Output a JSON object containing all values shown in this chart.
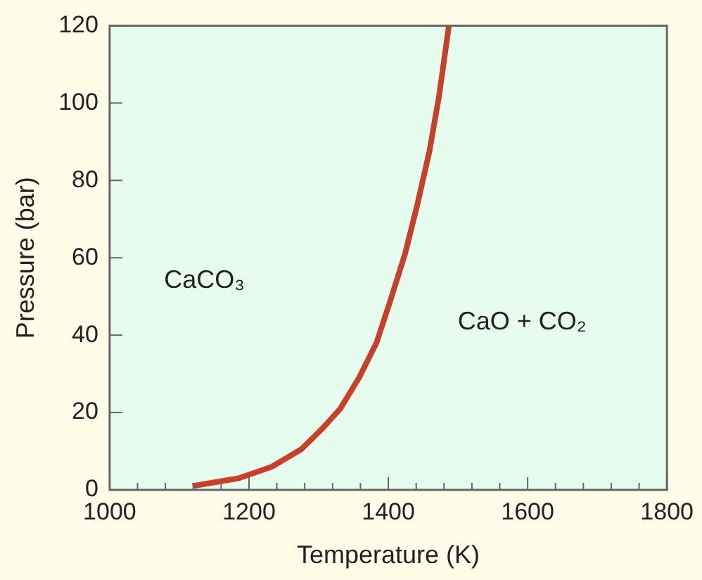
{
  "chart_data": {
    "type": "line",
    "xlabel": "Temperature (K)",
    "ylabel": "Pressure (bar)",
    "x": [
      1119,
      1185,
      1233,
      1275,
      1306,
      1331,
      1358,
      1383,
      1403,
      1424,
      1442,
      1459,
      1473,
      1487
    ],
    "series": [
      {
        "color": "#c8402a",
        "values": [
          1,
          3,
          6,
          10.5,
          16,
          21,
          29,
          38,
          49,
          61,
          74,
          87.5,
          102,
          120
        ]
      }
    ],
    "xlim": [
      1000,
      1800
    ],
    "ylim": [
      0,
      120
    ],
    "xticks": [
      1000,
      {
        "value": 1040,
        "label": null
      },
      {
        "value": 1080,
        "label": null
      },
      {
        "value": 1120,
        "label": null
      },
      {
        "value": 1160,
        "label": null
      },
      1200,
      {
        "value": 1240,
        "label": null
      },
      {
        "value": 1280,
        "label": null
      },
      {
        "value": 1320,
        "label": null
      },
      {
        "value": 1360,
        "label": null
      },
      1400,
      {
        "value": 1440,
        "label": null
      },
      {
        "value": 1480,
        "label": null
      },
      {
        "value": 1520,
        "label": null
      },
      {
        "value": 1560,
        "label": null
      },
      1600,
      {
        "value": 1640,
        "label": null
      },
      {
        "value": 1680,
        "label": null
      },
      {
        "value": 1720,
        "label": null
      },
      {
        "value": 1760,
        "label": null
      },
      1800
    ],
    "yticks": [
      0,
      20,
      40,
      60,
      80,
      100,
      120
    ],
    "grid": false,
    "legend": false,
    "marker": "none",
    "line_style": "solid",
    "annotations": [
      "CaCO₃",
      "CaO + CO₂"
    ]
  }
}
